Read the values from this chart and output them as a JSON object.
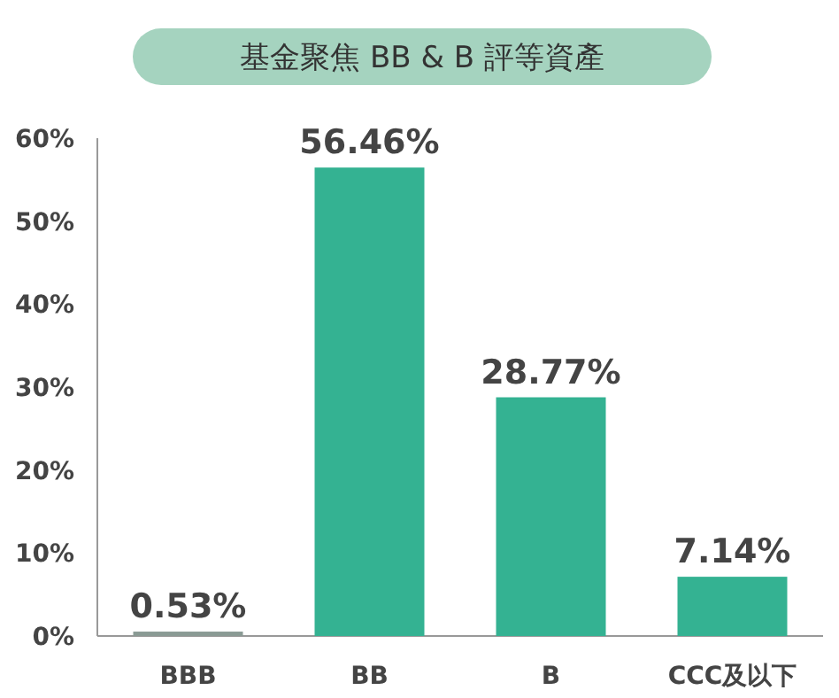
{
  "chart_data": {
    "type": "bar",
    "title": "基金聚焦 BB & B 評等資產",
    "categories": [
      "BBB",
      "BB",
      "B",
      "CCC及以下"
    ],
    "values": [
      0.53,
      56.46,
      28.77,
      7.14
    ],
    "value_labels": [
      "0.53%",
      "56.46%",
      "28.77%",
      "7.14%"
    ],
    "colors": [
      "#8a9a94",
      "#34b292",
      "#34b292",
      "#34b292"
    ],
    "ylim": [
      0,
      60
    ],
    "yticks": [
      {
        "value": 0,
        "label": "0%"
      },
      {
        "value": 10,
        "label": "10%"
      },
      {
        "value": 20,
        "label": "20%"
      },
      {
        "value": 30,
        "label": "30%"
      },
      {
        "value": 40,
        "label": "40%"
      },
      {
        "value": 50,
        "label": "50%"
      },
      {
        "value": 60,
        "label": "60%"
      }
    ],
    "grid": false
  }
}
